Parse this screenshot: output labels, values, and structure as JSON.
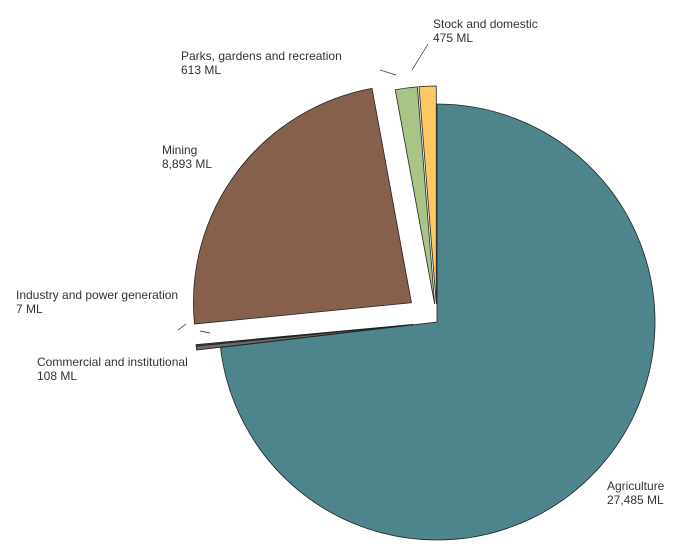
{
  "chart_data": {
    "type": "pie",
    "title": "",
    "slices": [
      {
        "label": "Agriculture",
        "value_text": "27,485 ML",
        "value": 27485,
        "color": "#4e848b"
      },
      {
        "label": "Commercial and institutional",
        "value_text": "108 ML",
        "value": 108,
        "color": "#6b6b6b"
      },
      {
        "label": "Industry and power generation",
        "value_text": "7 ML",
        "value": 7,
        "color": "#2f4f6f"
      },
      {
        "label": "Mining",
        "value_text": "8,893 ML",
        "value": 8893,
        "color": "#87604d"
      },
      {
        "label": "Parks, gardens and recreation",
        "value_text": "613 ML",
        "value": 613,
        "color": "#a8c587"
      },
      {
        "label": "Stock and domestic",
        "value_text": "475 ML",
        "value": 475,
        "color": "#fcc864"
      }
    ],
    "start_angle_deg": 0,
    "direction": "clockwise",
    "exploded": true
  }
}
